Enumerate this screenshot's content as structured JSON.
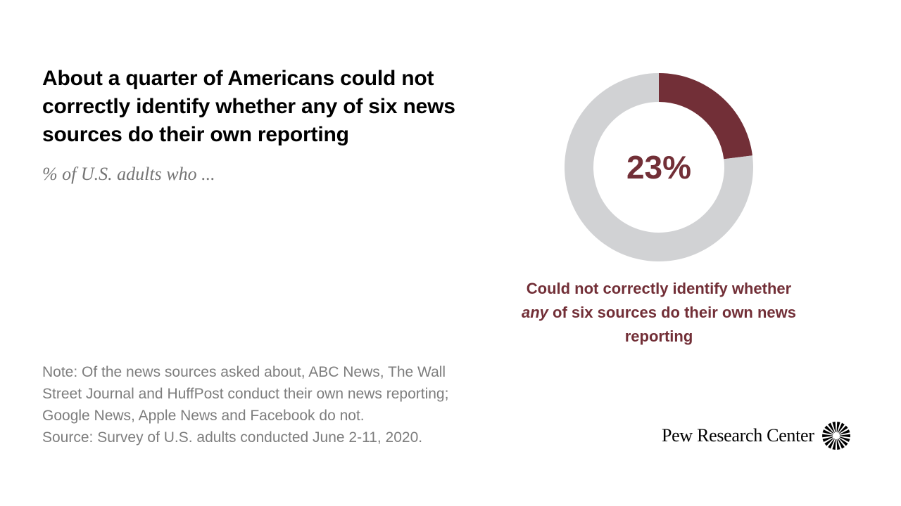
{
  "title": "About a quarter of Americans could not correctly identify whether any of six news sources do their own reporting",
  "subtitle": "% of U.S. adults who ...",
  "chart_data": {
    "type": "pie",
    "variant": "donut",
    "values": [
      23,
      77
    ],
    "center_label": "23%",
    "highlight_color": "#722F37",
    "remainder_color": "#D1D2D4",
    "caption": {
      "before": "Could not correctly identify whether ",
      "emphasis": "any",
      "after": " of six sources do their own news reporting"
    }
  },
  "note": "Note: Of the news sources asked about, ABC News, The Wall Street Journal and HuffPost conduct their own news reporting; Google News, Apple News and Facebook do not.",
  "source": "Source: Survey of U.S. adults conducted June 2-11, 2020.",
  "brand": {
    "name": "Pew Research Center",
    "logo_icon": "pew-sunburst-icon"
  }
}
